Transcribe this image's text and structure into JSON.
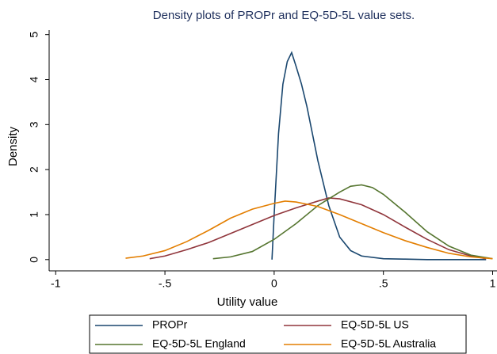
{
  "chart_data": {
    "type": "line",
    "title": "Density plots of PROPr and EQ-5D-5L value sets.",
    "x_label": "Utility value",
    "y_label": "Density",
    "xlim": [
      -1.03,
      1.02
    ],
    "ylim": [
      -0.25,
      5.1
    ],
    "xticks": [
      -1,
      {
        "value": -0.5,
        "label": "-.5"
      },
      0,
      {
        "value": 0.5,
        "label": ".5"
      },
      1
    ],
    "yticks": [
      0,
      1,
      2,
      3,
      4,
      5
    ],
    "series": [
      {
        "name": "PROPr",
        "color": "#1a476f",
        "x": [
          -0.01,
          0,
          0.02,
          0.04,
          0.06,
          0.08,
          0.1,
          0.125,
          0.15,
          0.175,
          0.2,
          0.25,
          0.3,
          0.35,
          0.4,
          0.5,
          0.6,
          0.7,
          0.8,
          0.9,
          0.97
        ],
        "values": [
          0,
          1.0,
          2.8,
          3.9,
          4.4,
          4.6,
          4.3,
          3.9,
          3.4,
          2.8,
          2.2,
          1.2,
          0.5,
          0.2,
          0.08,
          0.02,
          0.01,
          0,
          0,
          0,
          0
        ]
      },
      {
        "name": "EQ-5D-5L US",
        "color": "#90353b",
        "x": [
          -0.57,
          -0.5,
          -0.4,
          -0.3,
          -0.2,
          -0.1,
          0,
          0.1,
          0.2,
          0.25,
          0.3,
          0.4,
          0.5,
          0.6,
          0.7,
          0.8,
          0.9,
          0.97
        ],
        "values": [
          0.02,
          0.08,
          0.22,
          0.38,
          0.58,
          0.78,
          0.98,
          1.15,
          1.3,
          1.37,
          1.35,
          1.22,
          1.0,
          0.72,
          0.45,
          0.22,
          0.08,
          0.02
        ]
      },
      {
        "name": "EQ-5D-5L England",
        "color": "#55752f",
        "x": [
          -0.28,
          -0.2,
          -0.1,
          0,
          0.1,
          0.2,
          0.3,
          0.35,
          0.4,
          0.45,
          0.5,
          0.6,
          0.7,
          0.8,
          0.9,
          1.0
        ],
        "values": [
          0.02,
          0.06,
          0.18,
          0.45,
          0.8,
          1.2,
          1.5,
          1.63,
          1.66,
          1.6,
          1.45,
          1.05,
          0.62,
          0.3,
          0.1,
          0.02
        ]
      },
      {
        "name": "EQ-5D-5L Australia",
        "color": "#e37e00",
        "x": [
          -0.68,
          -0.6,
          -0.5,
          -0.4,
          -0.3,
          -0.2,
          -0.1,
          0,
          0.05,
          0.1,
          0.2,
          0.3,
          0.4,
          0.5,
          0.6,
          0.7,
          0.8,
          0.9,
          1.0
        ],
        "values": [
          0.03,
          0.08,
          0.2,
          0.4,
          0.65,
          0.92,
          1.12,
          1.25,
          1.3,
          1.28,
          1.18,
          1.0,
          0.8,
          0.6,
          0.42,
          0.27,
          0.14,
          0.06,
          0.02
        ]
      }
    ]
  }
}
